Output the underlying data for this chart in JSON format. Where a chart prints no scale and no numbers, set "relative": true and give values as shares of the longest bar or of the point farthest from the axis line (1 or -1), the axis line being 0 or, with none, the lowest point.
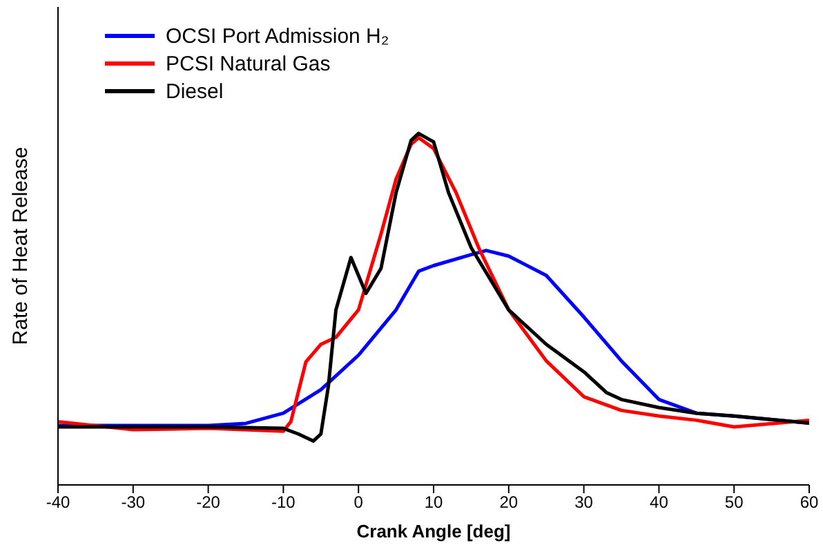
{
  "chart_data": {
    "type": "line",
    "relative": true,
    "xlabel": "Crank Angle [deg]",
    "ylabel": "Rate of Heat Release",
    "xlim": [
      -40,
      60
    ],
    "xticks": [
      -40,
      -30,
      -20,
      -10,
      0,
      10,
      20,
      30,
      40,
      50,
      60
    ],
    "grid": false,
    "legend": "top left",
    "marker": "none",
    "line_style": "solid",
    "series": [
      {
        "name": "OCSI Port Admission H₂",
        "color": "#0000ff",
        "x": [
          -40,
          -30,
          -20,
          -15,
          -10,
          -5,
          0,
          5,
          8,
          10,
          15,
          17,
          20,
          25,
          30,
          35,
          40,
          45,
          50,
          60
        ],
        "values": [
          0.169,
          0.169,
          0.169,
          0.175,
          0.204,
          0.271,
          0.369,
          0.498,
          0.608,
          0.624,
          0.655,
          0.667,
          0.651,
          0.596,
          0.478,
          0.353,
          0.243,
          0.204,
          0.196,
          0.176
        ]
      },
      {
        "name": "PCSI Natural Gas",
        "color": "#ff0000",
        "x": [
          -40,
          -30,
          -20,
          -10,
          -9,
          -7,
          -5,
          -3,
          0,
          3,
          5,
          7,
          8,
          10,
          13,
          16,
          20,
          25,
          30,
          35,
          40,
          45,
          50,
          60
        ],
        "values": [
          0.18,
          0.157,
          0.161,
          0.153,
          0.18,
          0.35,
          0.4,
          0.42,
          0.498,
          0.714,
          0.87,
          0.969,
          0.988,
          0.957,
          0.831,
          0.675,
          0.498,
          0.353,
          0.251,
          0.212,
          0.196,
          0.184,
          0.165,
          0.184
        ]
      },
      {
        "name": "Diesel",
        "color": "#000000",
        "x": [
          -40,
          -30,
          -20,
          -10,
          -8,
          -6,
          -5,
          -4,
          -3,
          -1,
          1,
          3,
          5,
          7,
          8,
          10,
          12,
          15,
          20,
          25,
          30,
          33,
          35,
          40,
          45,
          50,
          60
        ],
        "values": [
          0.165,
          0.165,
          0.165,
          0.161,
          0.145,
          0.125,
          0.145,
          0.282,
          0.498,
          0.647,
          0.545,
          0.616,
          0.831,
          0.98,
          1.0,
          0.976,
          0.831,
          0.675,
          0.498,
          0.4,
          0.322,
          0.263,
          0.243,
          0.22,
          0.204,
          0.196,
          0.176
        ]
      }
    ]
  }
}
